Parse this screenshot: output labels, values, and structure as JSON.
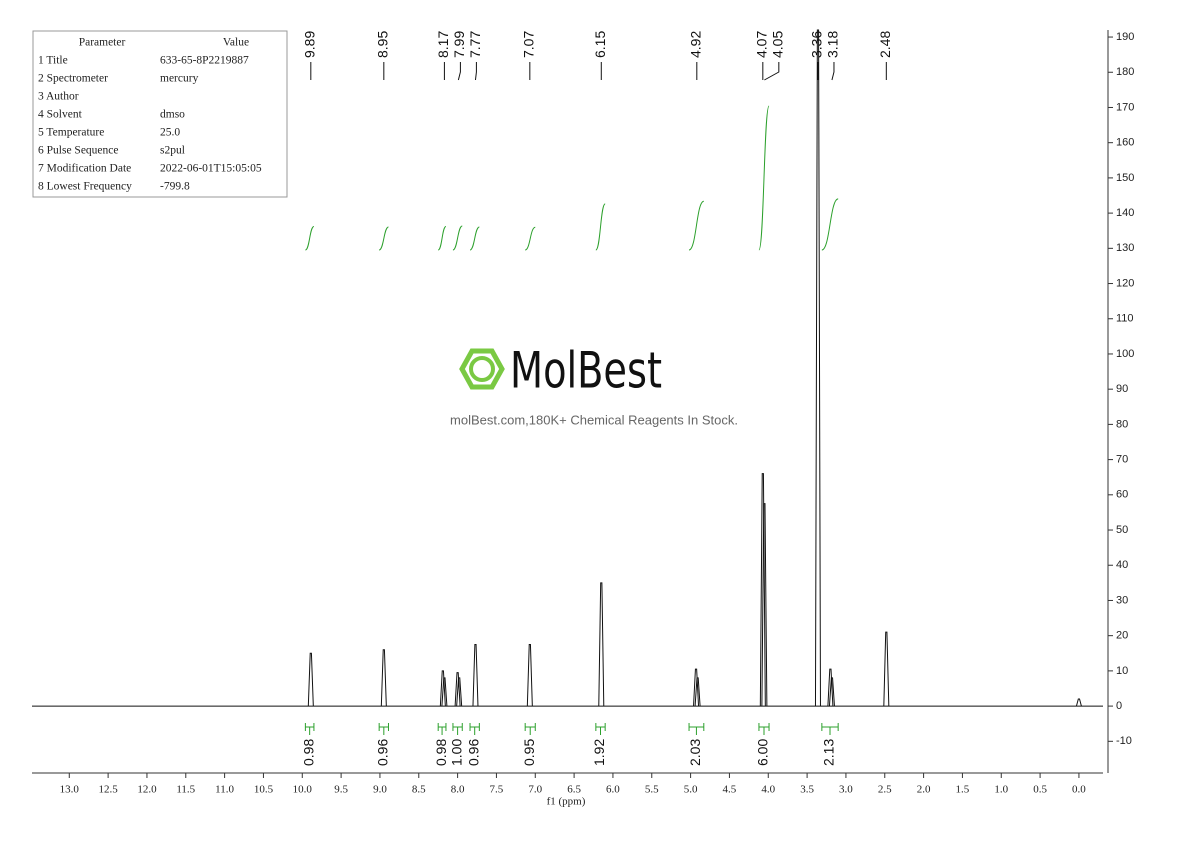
{
  "chart_data": {
    "type": "nmr",
    "x_label": "f1 (ppm)",
    "xlim": [
      13.48,
      -0.31
    ],
    "ylim": [
      -19,
      192
    ],
    "xticks": [
      {
        "value": 13,
        "label": "13.0"
      },
      {
        "value": 12.5,
        "label": "12.5"
      },
      {
        "value": 12,
        "label": "12.0"
      },
      {
        "value": 11.5,
        "label": "11.5"
      },
      {
        "value": 11,
        "label": "11.0"
      },
      {
        "value": 10.5,
        "label": "10.5"
      },
      {
        "value": 10,
        "label": "10.0"
      },
      {
        "value": 9.5,
        "label": "9.5"
      },
      {
        "value": 9,
        "label": "9.0"
      },
      {
        "value": 8.5,
        "label": "8.5"
      },
      {
        "value": 8,
        "label": "8.0"
      },
      {
        "value": 7.5,
        "label": "7.5"
      },
      {
        "value": 7,
        "label": "7.0"
      },
      {
        "value": 6.5,
        "label": "6.5"
      },
      {
        "value": 6,
        "label": "6.0"
      },
      {
        "value": 5.5,
        "label": "5.5"
      },
      {
        "value": 5,
        "label": "5.0"
      },
      {
        "value": 4.5,
        "label": "4.5"
      },
      {
        "value": 4,
        "label": "4.0"
      },
      {
        "value": 3.5,
        "label": "3.5"
      },
      {
        "value": 3,
        "label": "3.0"
      },
      {
        "value": 2.5,
        "label": "2.5"
      },
      {
        "value": 2,
        "label": "2.0"
      },
      {
        "value": 1.5,
        "label": "1.5"
      },
      {
        "value": 1,
        "label": "1.0"
      },
      {
        "value": 0.5,
        "label": "0.5"
      },
      {
        "value": 0,
        "label": "0.0"
      }
    ],
    "yticks": [
      -10,
      0,
      10,
      20,
      30,
      40,
      50,
      60,
      70,
      80,
      90,
      100,
      110,
      120,
      130,
      140,
      150,
      160,
      170,
      180,
      190
    ],
    "color": "#111111",
    "x": [
      9.89,
      8.95,
      8.19,
      8.17,
      8.0,
      7.98,
      7.77,
      7.07,
      6.15,
      4.93,
      4.91,
      4.07,
      4.05,
      3.36,
      3.2,
      3.18,
      2.48,
      0.0
    ],
    "values": [
      15,
      16,
      10,
      8,
      9.5,
      8,
      17.5,
      17.5,
      35,
      10.5,
      8,
      66,
      57.5,
      192,
      10.5,
      8,
      21,
      2
    ],
    "peak_labels": [
      9.89,
      8.95,
      8.17,
      7.99,
      7.77,
      7.07,
      6.15,
      4.92,
      4.07,
      4.05,
      3.36,
      3.18,
      2.48
    ],
    "integrals": {
      "color": "#2ca02c",
      "ranges": [
        [
          9.96,
          9.85
        ],
        [
          9.01,
          8.89
        ],
        [
          8.25,
          8.15
        ],
        [
          8.06,
          7.94
        ],
        [
          7.84,
          7.72
        ],
        [
          7.13,
          7.0
        ],
        [
          6.22,
          6.1
        ],
        [
          5.02,
          4.83
        ],
        [
          4.12,
          3.99
        ],
        [
          3.31,
          3.1
        ]
      ],
      "values": [
        0.98,
        0.96,
        0.98,
        1.0,
        0.96,
        0.95,
        1.92,
        2.03,
        6.0,
        2.13
      ],
      "value_labels": [
        "0.98",
        "0.96",
        "0.98",
        "1.00",
        "0.96",
        "0.95",
        "1.92",
        "2.03",
        "6.00",
        "2.13"
      ]
    }
  },
  "parameters": {
    "header": [
      "Parameter",
      "Value"
    ],
    "rows": [
      [
        "1 Title",
        "633-65-8P2219887"
      ],
      [
        "2 Spectrometer",
        "mercury"
      ],
      [
        "3 Author"
      ],
      [
        "4 Solvent",
        "dmso"
      ],
      [
        "5 Temperature",
        "25.0"
      ],
      [
        "6 Pulse Sequence",
        "s2pul"
      ],
      [
        "7 Modification Date",
        "2022-06-01T15:05:05"
      ],
      [
        "8 Lowest Frequency",
        "-799.8"
      ]
    ]
  },
  "watermark": {
    "brand": "MolBest",
    "tagline": "molBest.com,180K+ Chemical Reagents In Stock."
  }
}
